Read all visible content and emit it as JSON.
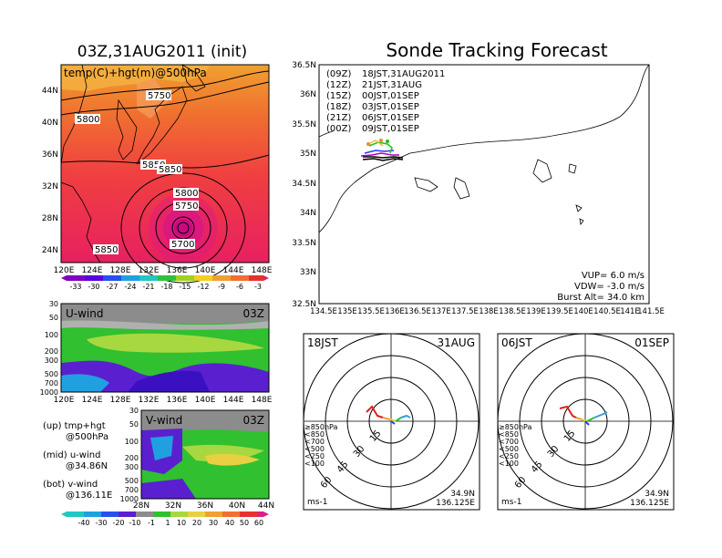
{
  "left_title": "03Z,31AUG2011 (init)",
  "right_title": "Sonde Tracking Forecast",
  "map500": {
    "label": "temp(C)+hgt(m)@500hPa",
    "lat_ticks": [
      "44N",
      "40N",
      "36N",
      "32N",
      "28N",
      "24N"
    ],
    "lon_ticks": [
      "120E",
      "124E",
      "128E",
      "132E",
      "136E",
      "140E",
      "144E",
      "148E"
    ],
    "contours": [
      "5750",
      "5800",
      "5850",
      "5850",
      "5800",
      "5750",
      "5700",
      "5850"
    ],
    "colorbar": [
      "-33",
      "-30",
      "-27",
      "-24",
      "-21",
      "-18",
      "-15",
      "-12",
      "-9",
      "-6",
      "-3"
    ]
  },
  "uwind": {
    "label": "U-wind",
    "time": "03Z",
    "p_ticks": [
      "30",
      "50",
      "100",
      "200",
      "300",
      "500",
      "700",
      "1000"
    ],
    "lon_ticks": [
      "120E",
      "124E",
      "128E",
      "132E",
      "136E",
      "140E",
      "144E",
      "148E"
    ]
  },
  "vwind": {
    "label": "V-wind",
    "time": "03Z",
    "p_ticks": [
      "30",
      "50",
      "100",
      "200",
      "300",
      "500",
      "700",
      "1000"
    ],
    "lat_ticks": [
      "28N",
      "32N",
      "36N",
      "40N",
      "44N"
    ],
    "colorbar": [
      "-40",
      "-30",
      "-20",
      "-10",
      "-1",
      "1",
      "10",
      "20",
      "30",
      "40",
      "50",
      "60"
    ]
  },
  "notes": [
    "(up) tmp+hgt",
    "@500hPa",
    "(mid) u-wind",
    "@34.86N",
    "(bot) v-wind",
    "@136.11E"
  ],
  "track": {
    "lat_ticks": [
      "36.5N",
      "36N",
      "35.5N",
      "35N",
      "34.5N",
      "34N",
      "33.5N",
      "33N",
      "32.5N"
    ],
    "lon_ticks": [
      "134.5E",
      "135E",
      "135.5E",
      "136E",
      "136.5E",
      "137E",
      "137.5E",
      "138E",
      "138.5E",
      "139E",
      "139.5E",
      "140E",
      "140.5E",
      "141E",
      "141.5E"
    ],
    "legend": [
      {
        "run": "(09Z)",
        "time": "18JST,31AUG2011",
        "color": "#000000"
      },
      {
        "run": "(12Z)",
        "time": "21JST,31AUG",
        "color": "#b000c0"
      },
      {
        "run": "(15Z)",
        "time": "00JST,01SEP",
        "color": "#1e3cff"
      },
      {
        "run": "(18Z)",
        "time": "03JST,01SEP",
        "color": "#20c020"
      },
      {
        "run": "(21Z)",
        "time": "06JST,01SEP",
        "color": "#e8c040"
      },
      {
        "run": "(00Z)",
        "time": "09JST,01SEP",
        "color": "#f08c30"
      }
    ],
    "vup": "VUP=  6.0  m/s",
    "vdw": "VDW= -3.0  m/s",
    "burst": "Burst Alt= 34.0  km"
  },
  "hodo_left": {
    "time": "18JST",
    "date": "31AUG",
    "rings": [
      "15",
      "30",
      "45",
      "60"
    ],
    "levels": [
      "≥850hPa",
      "<850",
      "<700",
      "<500",
      "<250",
      "<100"
    ],
    "unit": "ms-1",
    "lat": "34.9N",
    "lon": "136.125E"
  },
  "hodo_right": {
    "time": "06JST",
    "date": "01SEP",
    "rings": [
      "15",
      "30",
      "45",
      "60"
    ],
    "levels": [
      "≥850hPa",
      "<850",
      "<700",
      "<500",
      "<250",
      "<100"
    ],
    "unit": "ms-1",
    "lat": "34.9N",
    "lon": "136.125E"
  },
  "colors": {
    "levels": [
      "#e02020",
      "#f0a030",
      "#e8d040",
      "#30c030",
      "#30a0e0",
      "#2040ff"
    ]
  }
}
